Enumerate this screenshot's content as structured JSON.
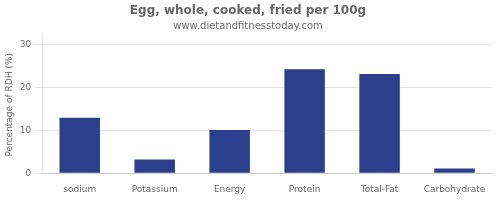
{
  "chart_data": {
    "type": "bar",
    "title": "Egg, whole, cooked, fried per 100g",
    "subtitle": "www.dietandfitnesstoday.com",
    "categories": [
      "sodium",
      "Potassium",
      "Energy",
      "Protein",
      "Total-Fat",
      "Carbohydrate"
    ],
    "values": [
      13.0,
      3.2,
      10.1,
      24.3,
      23.2,
      1.1
    ],
    "color": "#2b3f8c",
    "ylabel": "Percentage of RDH (%)",
    "ylim": [
      0,
      32
    ],
    "yticks": [
      0,
      10,
      20,
      30
    ],
    "grid": true
  }
}
